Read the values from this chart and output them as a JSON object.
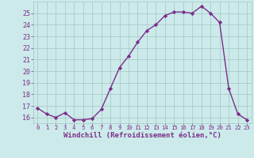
{
  "x": [
    0,
    1,
    2,
    3,
    4,
    5,
    6,
    7,
    8,
    9,
    10,
    11,
    12,
    13,
    14,
    15,
    16,
    17,
    18,
    19,
    20,
    21,
    22,
    23
  ],
  "y": [
    16.8,
    16.3,
    16.0,
    16.4,
    15.8,
    15.8,
    15.9,
    16.7,
    18.5,
    20.3,
    21.3,
    22.5,
    23.5,
    24.0,
    24.8,
    25.1,
    25.1,
    25.0,
    25.6,
    25.0,
    24.2,
    18.5,
    16.3,
    15.8
  ],
  "line_color": "#7b2d8b",
  "marker": "D",
  "markersize": 2.2,
  "linewidth": 1.0,
  "bg_color": "#cceaea",
  "grid_color": "#aacccc",
  "xlabel": "Windchill (Refroidissement éolien,°C)",
  "xlabel_color": "#7b2d8b",
  "xlabel_fontsize": 6.5,
  "tick_color": "#7b2d8b",
  "ytick_fontsize": 6.0,
  "xtick_fontsize": 5.2,
  "ylim": [
    15.5,
    26.0
  ],
  "xlim": [
    -0.5,
    23.5
  ],
  "yticks": [
    16,
    17,
    18,
    19,
    20,
    21,
    22,
    23,
    24,
    25
  ],
  "xticks": [
    0,
    1,
    2,
    3,
    4,
    5,
    6,
    7,
    8,
    9,
    10,
    11,
    12,
    13,
    14,
    15,
    16,
    17,
    18,
    19,
    20,
    21,
    22,
    23
  ]
}
